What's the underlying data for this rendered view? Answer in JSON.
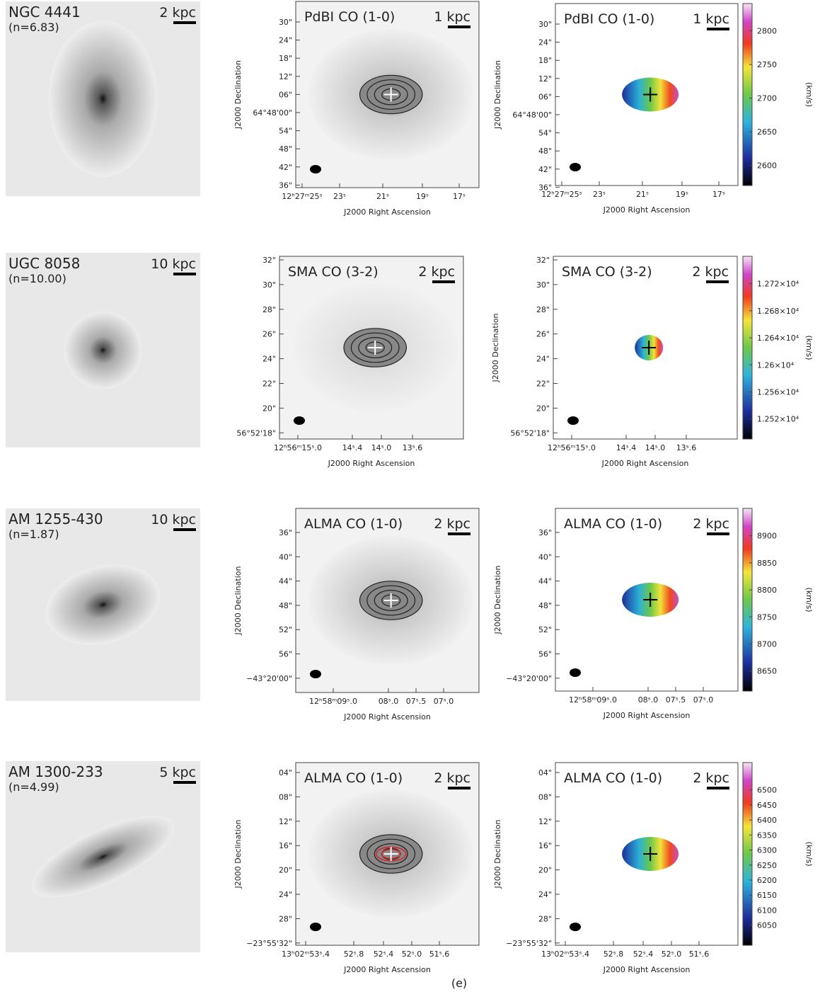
{
  "rows": [
    {
      "galaxy": "NGC 4441",
      "sersic": "(n=6.83)",
      "optical_scale": "2 kpc",
      "co_label": "PdBI CO (1-0)",
      "co_scale": "1 kpc",
      "dec_ticks": [
        "30\"",
        "24\"",
        "18\"",
        "12\"",
        "06\"",
        "64°48'00\"",
        "54\"",
        "48\"",
        "42\"",
        "36\""
      ],
      "ra_ticks": [
        "12ʰ27ᵐ25ˢ",
        "23ˢ",
        "21ˢ",
        "19ˢ",
        "17ˢ"
      ],
      "velocity_ticks": [
        "2800",
        "2750",
        "2700",
        "2650",
        "2600"
      ]
    },
    {
      "galaxy": "UGC 8058",
      "sersic": "(n=10.00)",
      "optical_scale": "10 kpc",
      "co_label": "SMA CO (3-2)",
      "co_scale": "2 kpc",
      "dec_ticks": [
        "32\"",
        "30\"",
        "28\"",
        "26\"",
        "24\"",
        "22\"",
        "20\"",
        "56°52'18\""
      ],
      "ra_ticks": [
        "12ʰ56ᵐ15ˢ.0",
        "14ˢ.4",
        "14ˢ.0",
        "13ˢ.6"
      ],
      "velocity_ticks": [
        "1.272×10⁴",
        "1.268×10⁴",
        "1.264×10⁴",
        "1.26×10⁴",
        "1.256×10⁴",
        "1.252×10⁴"
      ]
    },
    {
      "galaxy": "AM 1255-430",
      "sersic": "(n=1.87)",
      "optical_scale": "10 kpc",
      "co_label": "ALMA CO (1-0)",
      "co_scale": "2 kpc",
      "dec_ticks": [
        "36\"",
        "40\"",
        "44\"",
        "48\"",
        "52\"",
        "56\"",
        "−43°20'00\""
      ],
      "ra_ticks": [
        "12ʰ58ᵐ09ˢ.0",
        "08ˢ.0",
        "07ˢ.5",
        "07ˢ.0"
      ],
      "velocity_ticks": [
        "8900",
        "8850",
        "8800",
        "8750",
        "8700",
        "8650"
      ]
    },
    {
      "galaxy": "AM 1300-233",
      "sersic": "(n=4.99)",
      "optical_scale": "5 kpc",
      "co_label": "ALMA CO (1-0)",
      "co_scale": "2 kpc",
      "dec_ticks": [
        "04\"",
        "08\"",
        "12\"",
        "16\"",
        "20\"",
        "24\"",
        "28\"",
        "−23°55'32\""
      ],
      "ra_ticks": [
        "13ʰ02ᵐ53ˢ.4",
        "52ˢ.8",
        "52ˢ.4",
        "52ˢ.0",
        "51ˢ.6"
      ],
      "velocity_ticks": [
        "6500",
        "6450",
        "6400",
        "6350",
        "6300",
        "6250",
        "6200",
        "6150",
        "6100",
        "6050"
      ]
    }
  ],
  "axis_labels": {
    "dec": "J2000 Declination",
    "ra": "J2000 Right Ascension",
    "velocity": "(km/s)"
  },
  "caption": "(e)"
}
